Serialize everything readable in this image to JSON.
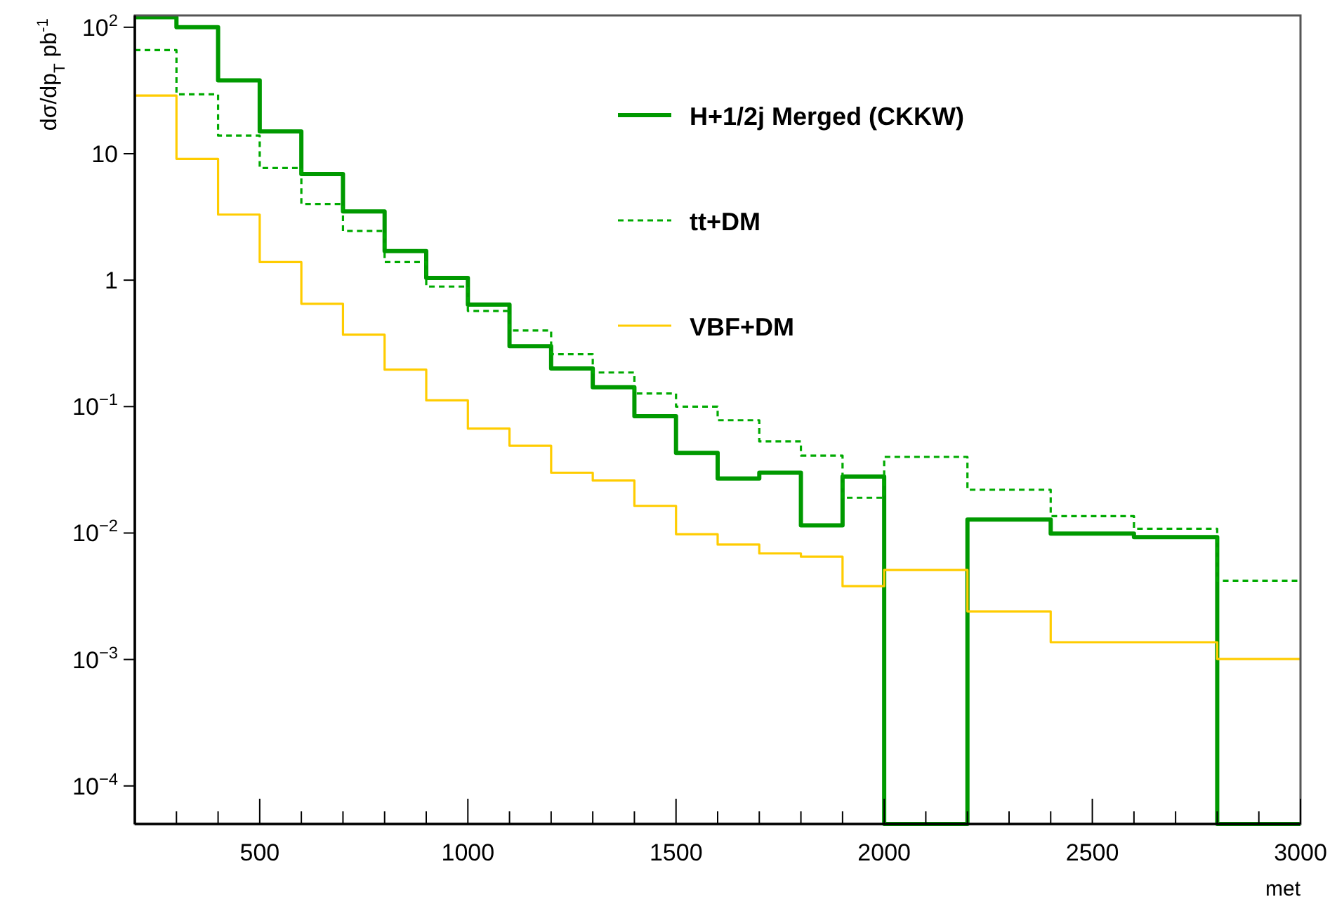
{
  "chart_data": {
    "type": "histogram",
    "xlabel": "met",
    "ylabel": "dσ/dp$_{T}$ pb$^{-1}$",
    "log": true,
    "legend": "top right",
    "grid": false,
    "bins": [
      200,
      300,
      400,
      500,
      600,
      700,
      800,
      900,
      1000,
      1100,
      1200,
      1300,
      1400,
      1500,
      1600,
      1700,
      1800,
      1900,
      2000,
      2200,
      2400,
      2600,
      2800,
      3000
    ],
    "xlim": [
      200,
      3000
    ],
    "xticks": [
      {
        "value": 300,
        "label": null
      },
      {
        "value": 400,
        "label": null
      },
      500,
      {
        "value": 600,
        "label": null
      },
      {
        "value": 700,
        "label": null
      },
      {
        "value": 800,
        "label": null
      },
      {
        "value": 900,
        "label": null
      },
      1000,
      {
        "value": 1100,
        "label": null
      },
      {
        "value": 1200,
        "label": null
      },
      {
        "value": 1300,
        "label": null
      },
      {
        "value": 1400,
        "label": null
      },
      1500,
      {
        "value": 1600,
        "label": null
      },
      {
        "value": 1700,
        "label": null
      },
      {
        "value": 1800,
        "label": null
      },
      {
        "value": 1900,
        "label": null
      },
      2000,
      {
        "value": 2100,
        "label": null
      },
      {
        "value": 2200,
        "label": null
      },
      {
        "value": 2300,
        "label": null
      },
      {
        "value": 2400,
        "label": null
      },
      2500,
      {
        "value": 2600,
        "label": null
      },
      {
        "value": 2700,
        "label": null
      },
      {
        "value": 2800,
        "label": null
      },
      {
        "value": 2900,
        "label": null
      },
      3000
    ],
    "ylim": [
      5e-05,
      124
    ],
    "yticks": [
      {
        "value": 0.0001,
        "label": "10$^{−4}$"
      },
      {
        "value": 0.001,
        "label": "10$^{−3}$"
      },
      {
        "value": 0.01,
        "label": "10$^{−2}$"
      },
      {
        "value": 0.1,
        "label": "10$^{−1}$"
      },
      1,
      10,
      {
        "value": 100,
        "label": "10$^{2}$"
      }
    ],
    "series": [
      {
        "name": "H+1/2j Merged (CKKW)",
        "color": "#009900",
        "line_style": "solid",
        "values": [
          120,
          100,
          38,
          15,
          6.9,
          3.5,
          1.7,
          1.04,
          0.64,
          0.3,
          0.2,
          0.142,
          0.084,
          0.043,
          0.027,
          0.03,
          0.0115,
          0.028,
          null,
          0.0128,
          0.0099,
          0.0093,
          null
        ]
      },
      {
        "name": "tt+DM",
        "color": "#00aa00",
        "line_style": "dashed",
        "values": [
          66,
          29.5,
          13.9,
          7.7,
          4.0,
          2.45,
          1.39,
          0.89,
          0.57,
          0.4,
          0.26,
          0.186,
          0.127,
          0.1,
          0.078,
          0.053,
          0.041,
          0.019,
          0.04,
          0.022,
          0.0136,
          0.0108,
          0.0042
        ]
      },
      {
        "name": "VBF+DM",
        "color": "#ffcc00",
        "line_style": "solid",
        "values": [
          28.8,
          9.1,
          3.3,
          1.39,
          0.65,
          0.37,
          0.196,
          0.112,
          0.067,
          0.049,
          0.03,
          0.026,
          0.0164,
          0.0098,
          0.0081,
          0.0069,
          0.0065,
          0.0038,
          0.0051,
          0.0024,
          0.00137,
          0.00137,
          0.00101
        ]
      }
    ]
  }
}
